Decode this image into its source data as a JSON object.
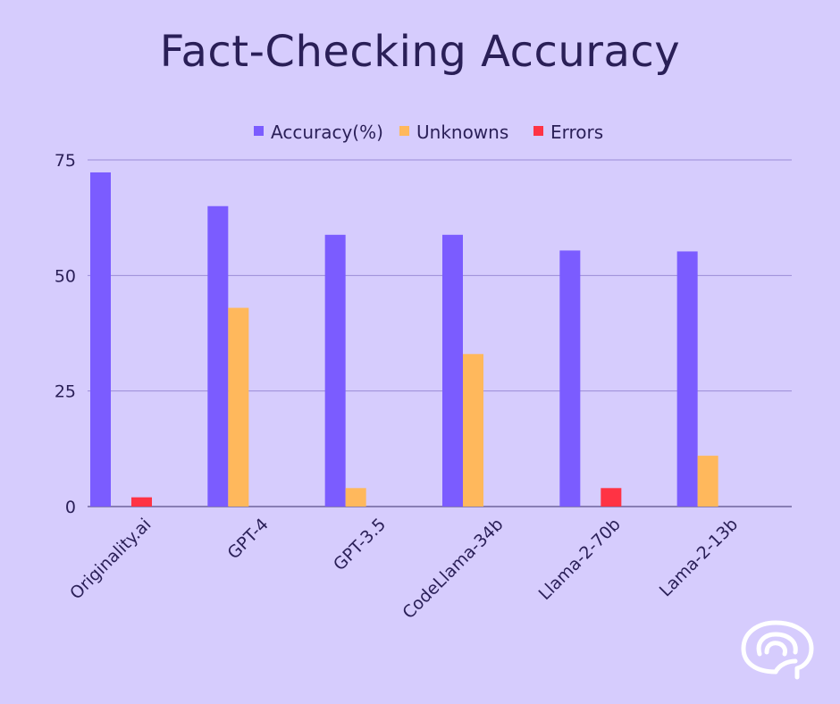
{
  "chart_data": {
    "type": "bar",
    "title": "Fact-Checking Accuracy",
    "categories": [
      "Originality.ai",
      "GPT-4",
      "GPT-3.5",
      "CodeLlama-34b",
      "Llama-2-70b",
      "Lama-2-13b"
    ],
    "series": [
      {
        "name": "Accuracy(%)",
        "color": "#7b5cff",
        "values": [
          72.3,
          65.0,
          58.8,
          58.8,
          55.4,
          55.2
        ]
      },
      {
        "name": "Unknowns",
        "color": "#ffb85c",
        "values": [
          0,
          43.0,
          4.0,
          33.0,
          0,
          11.0
        ]
      },
      {
        "name": "Errors",
        "color": "#ff3344",
        "values": [
          2.0,
          0,
          0,
          0,
          4.0,
          0
        ]
      }
    ],
    "xlabel": "",
    "ylabel": "",
    "ylim": [
      0,
      75
    ],
    "yticks": [
      0,
      25,
      50,
      75
    ],
    "grid": true,
    "legend_position": "top-center"
  },
  "colors": {
    "background": "#d6ccfd",
    "gridline": "#9a8cd6",
    "axis_text": "#2a1f57",
    "logo": "#ffffff"
  },
  "icons": {
    "logo": "brain-logo-icon"
  }
}
